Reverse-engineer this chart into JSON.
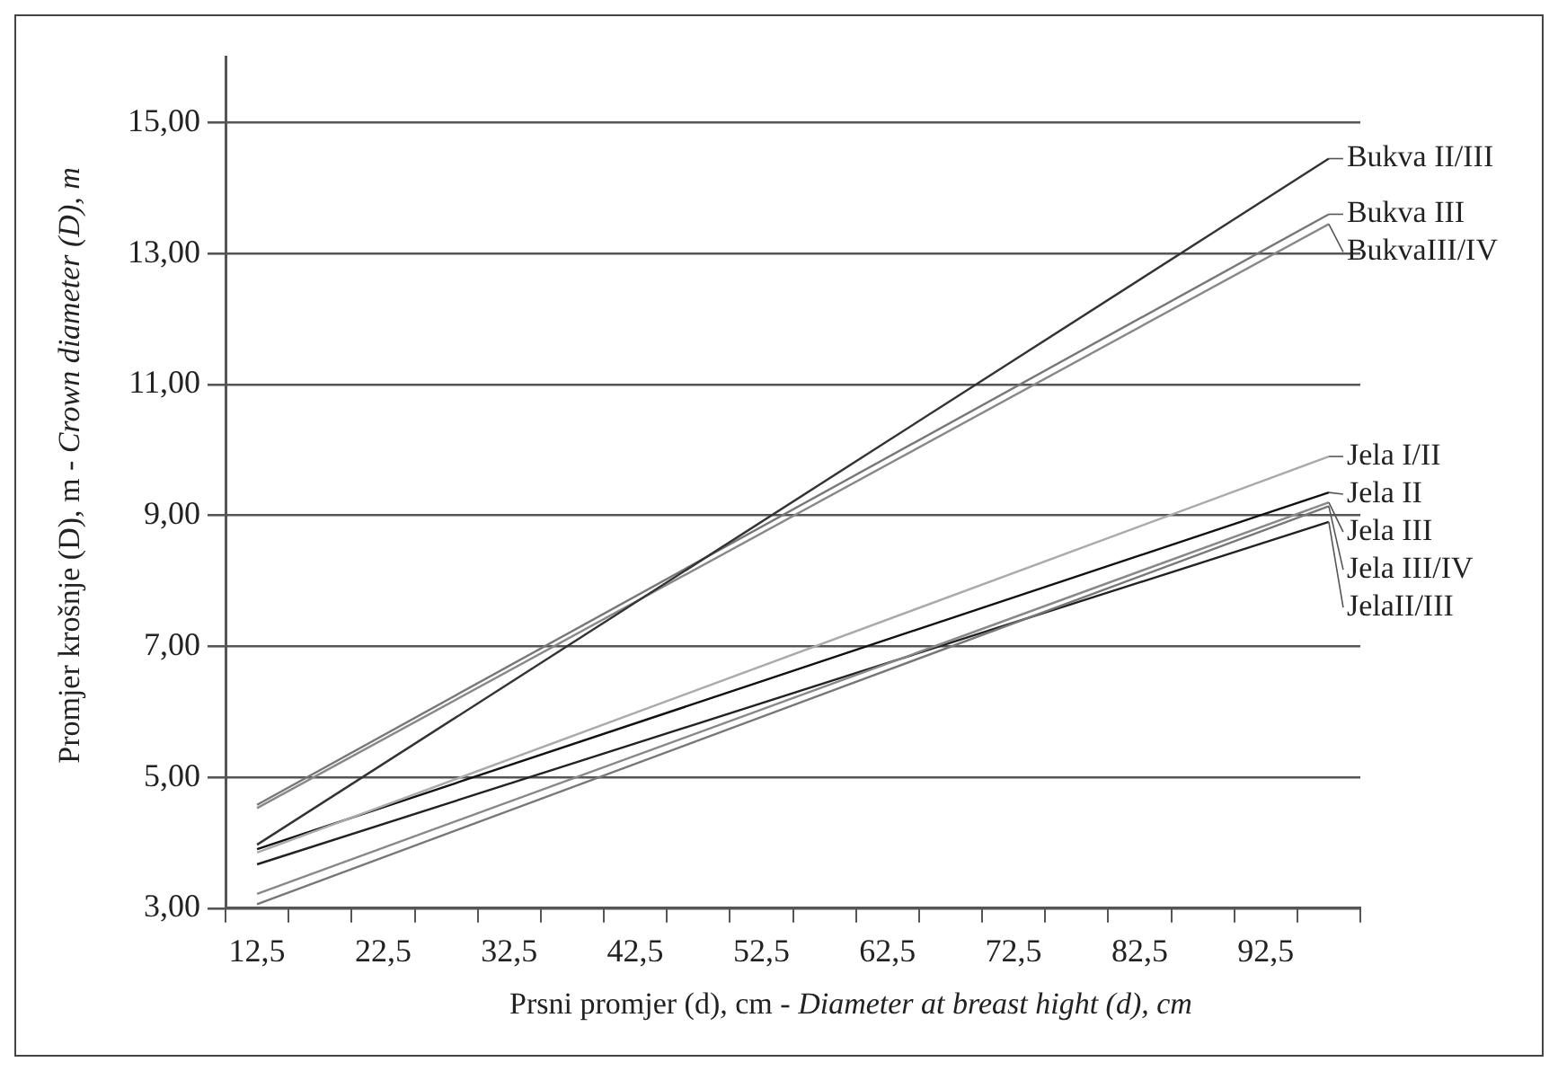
{
  "chart_data": {
    "type": "line",
    "xlabel": "Prsni promjer (d), cm - Diameter at breast hight (d), cm",
    "ylabel": "Promjer krošnje (D), m - Crown diameter (D), m",
    "categories": [
      "12,5",
      null,
      "22,5",
      null,
      "32,5",
      null,
      "42,5",
      null,
      "52,5",
      null,
      "62,5",
      null,
      "72,5",
      null,
      "82,5",
      null,
      "92,5",
      null
    ],
    "series": [
      {
        "name": "Bukva II/III",
        "color": "#333333",
        "values": [
          3.97,
          null,
          null,
          null,
          null,
          null,
          null,
          null,
          null,
          null,
          null,
          null,
          null,
          null,
          null,
          null,
          null,
          14.45
        ]
      },
      {
        "name": "Bukva III",
        "color": "#777777",
        "values": [
          4.58,
          null,
          null,
          null,
          null,
          null,
          null,
          null,
          null,
          null,
          null,
          null,
          null,
          null,
          null,
          null,
          null,
          13.6
        ]
      },
      {
        "name": "BukvaIII/IV",
        "color": "#888888",
        "values": [
          4.53,
          null,
          null,
          null,
          null,
          null,
          null,
          null,
          null,
          null,
          null,
          null,
          null,
          null,
          null,
          null,
          null,
          13.45
        ]
      },
      {
        "name": "Jela I/II",
        "color": "#aaaaaa",
        "values": [
          3.85,
          null,
          null,
          null,
          null,
          null,
          null,
          null,
          null,
          null,
          null,
          null,
          null,
          null,
          null,
          null,
          null,
          9.9
        ]
      },
      {
        "name": "Jela II",
        "color": "#111111",
        "values": [
          3.9,
          null,
          null,
          null,
          null,
          null,
          null,
          null,
          null,
          null,
          null,
          null,
          null,
          null,
          null,
          null,
          null,
          9.35
        ]
      },
      {
        "name": "Jela III",
        "color": "#888888",
        "values": [
          3.22,
          null,
          null,
          null,
          null,
          null,
          null,
          null,
          null,
          null,
          null,
          null,
          null,
          null,
          null,
          null,
          null,
          9.2
        ]
      },
      {
        "name": "Jela III/IV",
        "color": "#777777",
        "values": [
          3.06,
          null,
          null,
          null,
          null,
          null,
          null,
          null,
          null,
          null,
          null,
          null,
          null,
          null,
          null,
          null,
          null,
          9.14
        ]
      },
      {
        "name": "JelaII/III",
        "color": "#222222",
        "values": [
          3.67,
          null,
          null,
          null,
          null,
          null,
          null,
          null,
          null,
          null,
          null,
          null,
          null,
          null,
          null,
          null,
          null,
          8.9
        ]
      }
    ],
    "ylim": [
      3,
      16
    ],
    "yticks": [
      {
        "value": 3,
        "label": "3,00"
      },
      {
        "value": 5,
        "label": "5,00"
      },
      {
        "value": 7,
        "label": "7,00"
      },
      {
        "value": 9,
        "label": "9,00"
      },
      {
        "value": 11,
        "label": "11,00"
      },
      {
        "value": 13,
        "label": "13,00"
      },
      {
        "value": 15,
        "label": "15,00"
      }
    ],
    "grid": "y",
    "legend": false,
    "marker": "none",
    "line_style": "solid"
  }
}
